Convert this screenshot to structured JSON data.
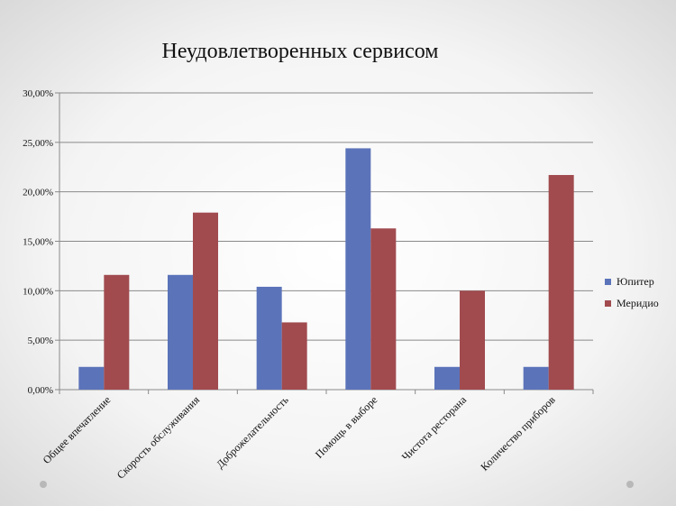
{
  "chart_data": {
    "type": "bar",
    "title": "Неудовлетворенных сервисом",
    "categories": [
      "Общее впечатление",
      "Скорость обслуживания",
      "Доброжелательность",
      "Помощь в выборе",
      "Чистота ресторана",
      "Количество приборов"
    ],
    "series": [
      {
        "name": "Юпитер",
        "color": "#5B73B9",
        "values": [
          2.3,
          11.6,
          10.4,
          24.4,
          2.3,
          2.3
        ]
      },
      {
        "name": "Меридио",
        "color": "#A14B4F",
        "values": [
          11.6,
          17.9,
          6.8,
          16.3,
          10.0,
          21.7
        ]
      }
    ],
    "ylim": [
      0,
      30
    ],
    "yticks": [
      "0,00%",
      "5,00%",
      "10,00%",
      "15,00%",
      "20,00%",
      "25,00%",
      "30,00%"
    ],
    "grid": true,
    "legend": "right"
  }
}
